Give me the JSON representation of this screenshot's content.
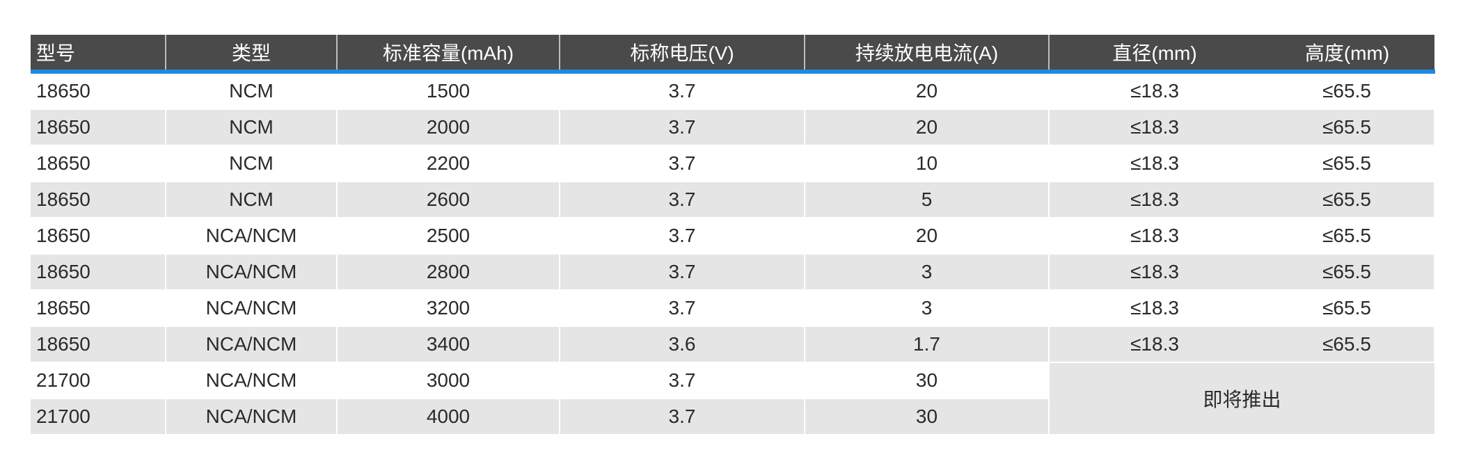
{
  "colors": {
    "header_bg": "#4a4a4a",
    "accent_line": "#1e88e5",
    "stripe": "#e5e5e5"
  },
  "headers": [
    "型号",
    "类型",
    "标准容量(mAh)",
    "标称电压(V)",
    "持续放电电流(A)",
    "直径(mm)",
    "高度(mm)"
  ],
  "rows": [
    [
      "18650",
      "NCM",
      "1500",
      "3.7",
      "20",
      "≤18.3",
      "≤65.5"
    ],
    [
      "18650",
      "NCM",
      "2000",
      "3.7",
      "20",
      "≤18.3",
      "≤65.5"
    ],
    [
      "18650",
      "NCM",
      "2200",
      "3.7",
      "10",
      "≤18.3",
      "≤65.5"
    ],
    [
      "18650",
      "NCM",
      "2600",
      "3.7",
      "5",
      "≤18.3",
      "≤65.5"
    ],
    [
      "18650",
      "NCA/NCM",
      "2500",
      "3.7",
      "20",
      "≤18.3",
      "≤65.5"
    ],
    [
      "18650",
      "NCA/NCM",
      "2800",
      "3.7",
      "3",
      "≤18.3",
      "≤65.5"
    ],
    [
      "18650",
      "NCA/NCM",
      "3200",
      "3.7",
      "3",
      "≤18.3",
      "≤65.5"
    ],
    [
      "18650",
      "NCA/NCM",
      "3400",
      "3.6",
      "1.7",
      "≤18.3",
      "≤65.5"
    ],
    [
      "21700",
      "NCA/NCM",
      "3000",
      "3.7",
      "30"
    ],
    [
      "21700",
      "NCA/NCM",
      "4000",
      "3.7",
      "30"
    ]
  ],
  "coming_soon": "即将推出"
}
